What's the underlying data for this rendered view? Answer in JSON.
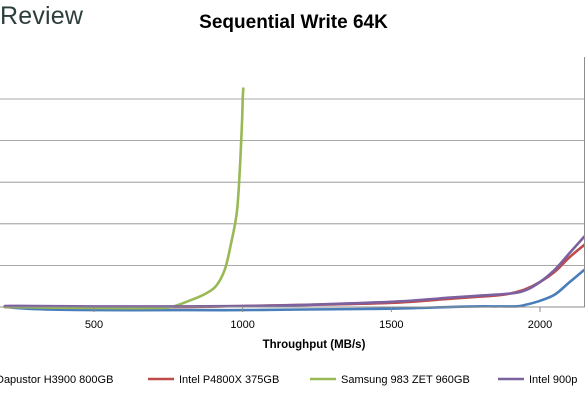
{
  "brand": {
    "text": "Review"
  },
  "chart_data": {
    "type": "line",
    "title": "Sequential Write 64K",
    "xlabel": "Throughput (MB/s)",
    "ylabel": "",
    "xlim": [
      200,
      2150
    ],
    "ylim": [
      0,
      125
    ],
    "x_ticks": [
      500,
      1000,
      1500,
      2000
    ],
    "y_gridlines": [
      20,
      40,
      60,
      80,
      100
    ],
    "grid": true,
    "legend_position": "bottom",
    "series": [
      {
        "name": "Dapustor H3900 800GB",
        "color": "#4a7ebb",
        "x": [
          200,
          300,
          500,
          800,
          1000,
          1200,
          1500,
          1750,
          1850,
          1920,
          1950,
          2000,
          2050,
          2100,
          2150
        ],
        "y": [
          0,
          -1,
          -1.5,
          -1.5,
          -1.5,
          -1.2,
          -0.8,
          0.2,
          0.3,
          0.3,
          1,
          3,
          6,
          12,
          18
        ]
      },
      {
        "name": "Intel P4800X 375GB",
        "color": "#be4b48",
        "x": [
          200,
          300,
          500,
          800,
          1000,
          1200,
          1500,
          1700,
          1800,
          1850,
          1900,
          1950,
          2000,
          2050,
          2100,
          2150
        ],
        "y": [
          0,
          0,
          0,
          0,
          0.5,
          1,
          2,
          4,
          5,
          5.5,
          6.5,
          8.5,
          12,
          17,
          24,
          30
        ]
      },
      {
        "name": "Samsung 983 ZET 960GB",
        "color": "#98b954",
        "x": [
          200,
          500,
          700,
          760,
          820,
          870,
          910,
          940,
          960,
          980,
          990,
          998,
          1000,
          1002
        ],
        "y": [
          0,
          -0.5,
          -0.5,
          0,
          3,
          6,
          10,
          18,
          30,
          45,
          65,
          90,
          100,
          105
        ]
      },
      {
        "name": "Intel 900p",
        "color": "#7d60a0",
        "x": [
          200,
          300,
          500,
          800,
          1000,
          1200,
          1500,
          1700,
          1800,
          1900,
          1950,
          2000,
          2050,
          2100,
          2150
        ],
        "y": [
          0.5,
          0.5,
          0.3,
          0.3,
          0.5,
          1,
          2.5,
          4.5,
          5.5,
          6.5,
          8,
          12,
          18,
          26,
          34
        ]
      }
    ]
  }
}
